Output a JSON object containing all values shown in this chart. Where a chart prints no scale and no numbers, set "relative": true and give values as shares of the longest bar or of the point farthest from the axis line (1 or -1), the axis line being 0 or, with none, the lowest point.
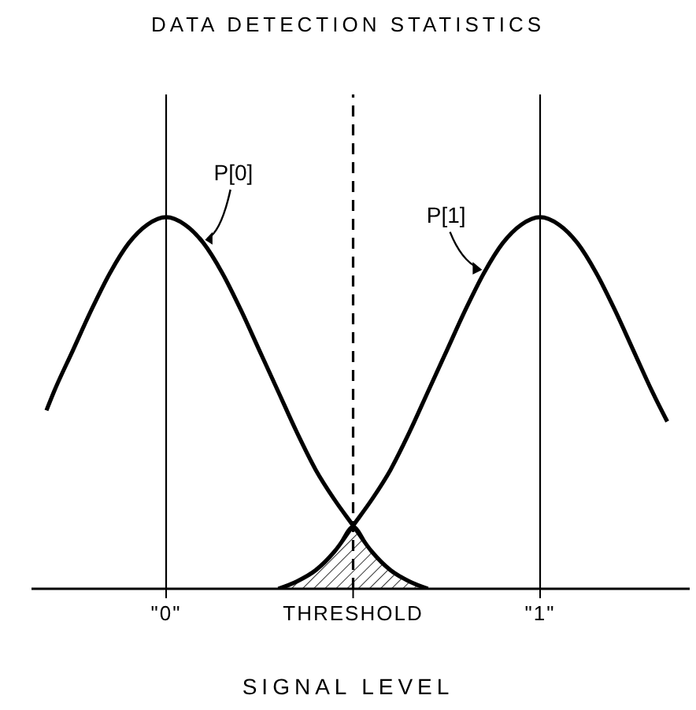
{
  "chart_data": {
    "type": "line",
    "title": "DATA DETECTION STATISTICS",
    "xlabel": "SIGNAL LEVEL",
    "relative": true,
    "legend": false,
    "marker": "none",
    "line_style": "solid",
    "xlim": [
      -0.36,
      1.4
    ],
    "xticks": [
      {
        "value": 0,
        "label": "\"0\""
      },
      {
        "value": 0.5,
        "label": "THRESHOLD"
      },
      {
        "value": 1,
        "label": "\"1\""
      }
    ],
    "series": [
      {
        "name": "P[0]",
        "color": "#000000",
        "x": [
          -0.32,
          -0.3,
          -0.25,
          -0.2,
          -0.15,
          -0.1,
          -0.05,
          0,
          0.05,
          0.1,
          0.15,
          0.2,
          0.25,
          0.3,
          0.35,
          0.4,
          0.45,
          0.5,
          0.55,
          0.6,
          0.65,
          0.7
        ],
        "values": [
          0.48,
          0.53,
          0.64,
          0.75,
          0.85,
          0.93,
          0.98,
          1,
          0.98,
          0.93,
          0.85,
          0.75,
          0.64,
          0.53,
          0.42,
          0.32,
          0.24,
          0.17,
          0.1,
          0.05,
          0.02,
          0
        ]
      },
      {
        "name": "P[1]",
        "color": "#000000",
        "x": [
          0.3,
          0.35,
          0.4,
          0.45,
          0.5,
          0.55,
          0.6,
          0.65,
          0.7,
          0.75,
          0.8,
          0.85,
          0.9,
          0.95,
          1,
          1.05,
          1.1,
          1.15,
          1.2,
          1.25,
          1.3,
          1.34
        ],
        "values": [
          0,
          0.02,
          0.05,
          0.1,
          0.17,
          0.24,
          0.32,
          0.42,
          0.53,
          0.64,
          0.75,
          0.85,
          0.93,
          0.98,
          1,
          0.98,
          0.93,
          0.85,
          0.75,
          0.64,
          0.53,
          0.45
        ]
      },
      {
        "type": "area",
        "color": "#000000",
        "x": [
          0.3,
          0.35,
          0.4,
          0.45,
          0.5,
          0.55,
          0.6,
          0.65,
          0.7
        ],
        "values": [
          0,
          0.02,
          0.05,
          0.1,
          0.17,
          0.1,
          0.05,
          0.02,
          0
        ]
      }
    ],
    "ref_lines": [
      {
        "axis": "x",
        "value": 0,
        "color": "#000000",
        "line_style": "solid"
      },
      {
        "axis": "x",
        "value": 1,
        "color": "#000000",
        "line_style": "solid"
      },
      {
        "axis": "x",
        "value": 0.5,
        "color": "#000000",
        "line_style": "dashed"
      }
    ]
  }
}
